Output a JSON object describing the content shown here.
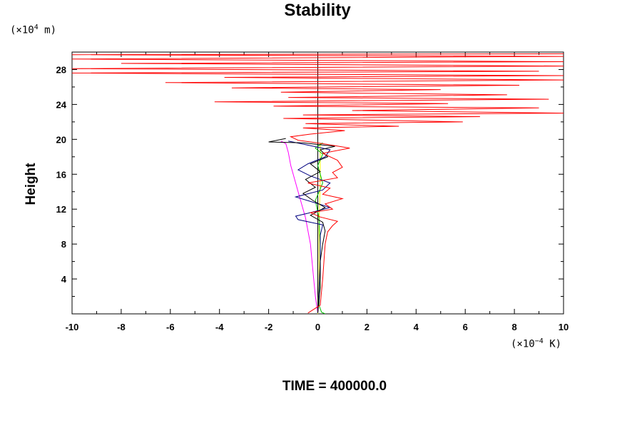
{
  "chart_data": {
    "type": "line",
    "title": "Stability",
    "ylabel": "Height",
    "y_unit_prefix": "(×10",
    "y_unit_exp": "4",
    "y_unit_suffix": " m)",
    "x_unit_prefix": "(×10",
    "x_unit_exp": "−4",
    "x_unit_suffix": " K)",
    "footer": "TIME = 400000.0",
    "xlim": [
      -10,
      10
    ],
    "ylim": [
      0,
      30
    ],
    "x_ticks": [
      -10,
      -8,
      -6,
      -4,
      -2,
      0,
      2,
      4,
      6,
      8,
      10
    ],
    "y_ticks": [
      4,
      8,
      12,
      16,
      20,
      24,
      28
    ],
    "colors": {
      "red": "#ff0000",
      "black": "#000000",
      "blue": "#000080",
      "green": "#00c000",
      "magenta": "#ff00ff",
      "yellow": "#ffff00",
      "axis": "#000000"
    },
    "series": [
      {
        "color": "magenta",
        "points": [
          [
            0,
            0.1
          ],
          [
            -0.1,
            2
          ],
          [
            -0.2,
            5
          ],
          [
            -0.3,
            8
          ],
          [
            -0.5,
            11
          ],
          [
            -0.8,
            14
          ],
          [
            -1.1,
            17
          ],
          [
            -1.2,
            18.5
          ],
          [
            -1.3,
            19.5
          ],
          [
            -1.5,
            19.8
          ]
        ]
      },
      {
        "color": "yellow",
        "points": [
          [
            0,
            0
          ],
          [
            0.05,
            4
          ],
          [
            0.05,
            10
          ],
          [
            0.1,
            15
          ],
          [
            0.1,
            19.5
          ]
        ]
      },
      {
        "color": "green",
        "points": [
          [
            0.3,
            0
          ],
          [
            0.15,
            0.2
          ],
          [
            0.05,
            1
          ],
          [
            0.1,
            4
          ],
          [
            0.1,
            8
          ],
          [
            0.05,
            11
          ],
          [
            -0.1,
            13
          ],
          [
            0.2,
            15
          ],
          [
            0,
            17
          ],
          [
            0.2,
            18.3
          ],
          [
            -0.1,
            19
          ],
          [
            0.2,
            19.6
          ]
        ]
      },
      {
        "color": "blue",
        "points": [
          [
            0,
            0.1
          ],
          [
            0.05,
            3
          ],
          [
            0.1,
            6
          ],
          [
            0.1,
            9
          ],
          [
            0.2,
            10.2
          ],
          [
            -0.8,
            10.8
          ],
          [
            -0.9,
            11.2
          ],
          [
            -0.3,
            11.6
          ],
          [
            0.5,
            12.2
          ],
          [
            -0.2,
            12.8
          ],
          [
            -0.9,
            13.4
          ],
          [
            0.2,
            14.2
          ],
          [
            0.5,
            15
          ],
          [
            -0.3,
            15.8
          ],
          [
            -0.8,
            16.5
          ],
          [
            -0.4,
            17.2
          ],
          [
            0.3,
            18
          ],
          [
            0.5,
            18.8
          ],
          [
            -0.5,
            19.4
          ],
          [
            -1.2,
            19.8
          ]
        ]
      },
      {
        "color": "black",
        "points": [
          [
            0,
            0.1
          ],
          [
            0.1,
            3
          ],
          [
            0.1,
            6
          ],
          [
            0.2,
            8
          ],
          [
            0.3,
            9.5
          ],
          [
            0.2,
            10.5
          ],
          [
            -0.3,
            11.3
          ],
          [
            0.3,
            12.2
          ],
          [
            -0.2,
            13
          ],
          [
            -0.6,
            13.8
          ],
          [
            -0.1,
            14.5
          ],
          [
            -0.5,
            15.4
          ],
          [
            0.1,
            16.3
          ],
          [
            -0.3,
            17.2
          ],
          [
            0.4,
            18
          ],
          [
            0.1,
            18.8
          ],
          [
            0.7,
            19.2
          ],
          [
            -0.6,
            19.6
          ],
          [
            -2,
            19.7
          ],
          [
            -1.3,
            20.1
          ]
        ]
      },
      {
        "color": "red",
        "points": [
          [
            -0.4,
            0.1
          ],
          [
            0.1,
            1
          ],
          [
            0.2,
            4
          ],
          [
            0.3,
            8
          ],
          [
            0.4,
            9.4
          ],
          [
            0.6,
            10.1
          ],
          [
            0.8,
            10.6
          ],
          [
            0.1,
            11.1
          ],
          [
            -0.3,
            11.6
          ],
          [
            0.6,
            12
          ],
          [
            0.3,
            12.6
          ],
          [
            1,
            13.2
          ],
          [
            0.2,
            13.7
          ],
          [
            0.5,
            14.4
          ],
          [
            -0.4,
            15
          ],
          [
            0.8,
            15.6
          ],
          [
            0.6,
            16.2
          ],
          [
            1,
            16.8
          ],
          [
            0.8,
            17.6
          ],
          [
            0.2,
            18.4
          ],
          [
            1.3,
            19
          ],
          [
            0.2,
            19.5
          ],
          [
            -0.8,
            19.9
          ],
          [
            -1.1,
            20.3
          ],
          [
            -0.3,
            20.6
          ],
          [
            1.1,
            21
          ],
          [
            -0.6,
            21.3
          ],
          [
            3.3,
            21.5
          ],
          [
            -0.5,
            21.8
          ],
          [
            5.9,
            22
          ],
          [
            -1.4,
            22.4
          ],
          [
            6.6,
            22.6
          ],
          [
            -0.6,
            22.8
          ],
          [
            10,
            23
          ],
          [
            1.4,
            23.3
          ],
          [
            9,
            23.6
          ],
          [
            -1.8,
            23.8
          ],
          [
            5.3,
            24.1
          ],
          [
            -4.2,
            24.3
          ],
          [
            9.4,
            24.6
          ],
          [
            -1.2,
            24.8
          ],
          [
            7.7,
            25.1
          ],
          [
            -1.5,
            25.4
          ],
          [
            5,
            25.7
          ],
          [
            -3.5,
            25.9
          ],
          [
            8.2,
            26.2
          ],
          [
            -6.2,
            26.5
          ],
          [
            10,
            26.8
          ],
          [
            -3.8,
            27.1
          ],
          [
            10,
            27.3
          ],
          [
            -10,
            27.6
          ],
          [
            9,
            27.8
          ],
          [
            -10,
            28.1
          ],
          [
            10,
            28.4
          ],
          [
            -8,
            28.7
          ],
          [
            10,
            28.9
          ],
          [
            -10,
            29.2
          ],
          [
            10,
            29.5
          ],
          [
            -10,
            29.7
          ],
          [
            10,
            29.8
          ]
        ]
      }
    ]
  }
}
